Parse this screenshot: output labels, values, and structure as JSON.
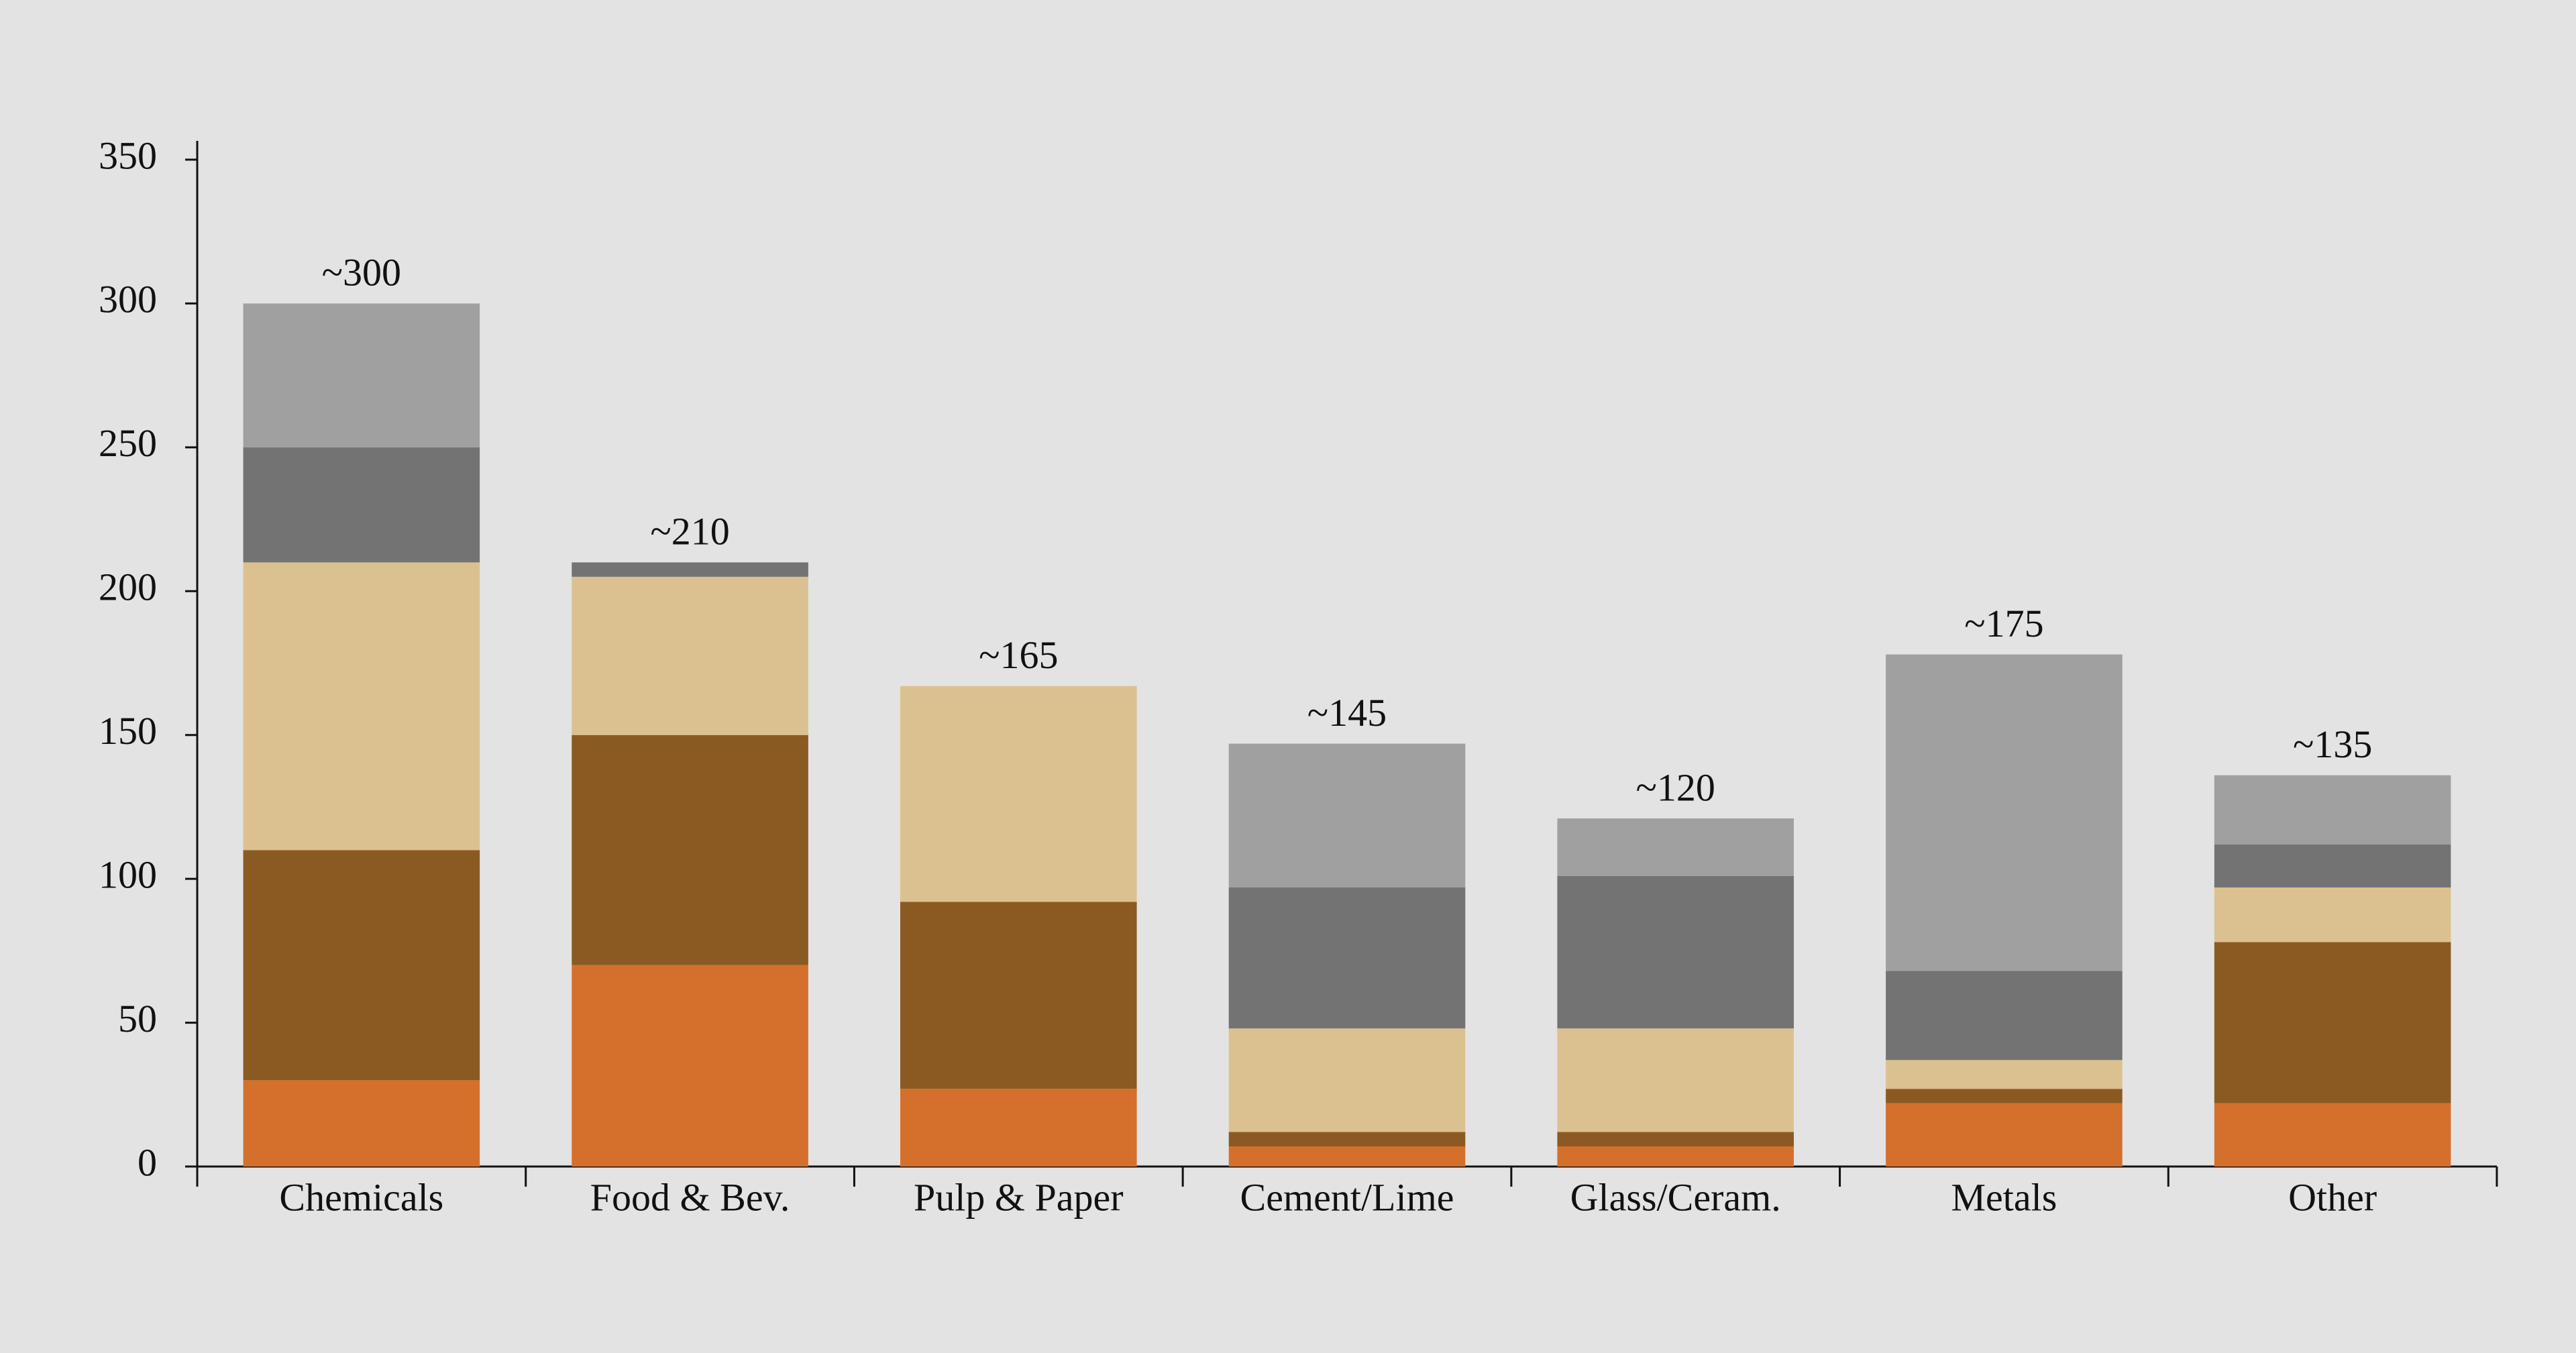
{
  "chart_data": {
    "type": "stacked_bar",
    "categories": [
      "Chemicals",
      "Food & Bev.",
      "Pulp & Paper",
      "Cement/Lime",
      "Glass/Ceram.",
      "Metals",
      "Other"
    ],
    "series": [
      {
        "color": "#d4702c",
        "values": [
          30,
          70,
          27,
          7,
          7,
          22,
          22
        ]
      },
      {
        "color": "#8b5a22",
        "values": [
          80,
          80,
          65,
          5,
          5,
          5,
          56
        ]
      },
      {
        "color": "#dcc190",
        "values": [
          100,
          55,
          75,
          36,
          36,
          10,
          19
        ]
      },
      {
        "color": "#737373",
        "values": [
          40,
          5,
          0,
          49,
          53,
          31,
          15
        ]
      },
      {
        "color": "#a0a0a0",
        "values": [
          50,
          0,
          0,
          50,
          20,
          110,
          24
        ]
      }
    ],
    "total_labels": [
      "~300",
      "~210",
      "~165",
      "~145",
      "~120",
      "~175",
      "~135"
    ],
    "ylim": [
      0,
      350
    ],
    "yticks": [
      0,
      50,
      100,
      150,
      200,
      250,
      300,
      350
    ],
    "grid": false
  }
}
